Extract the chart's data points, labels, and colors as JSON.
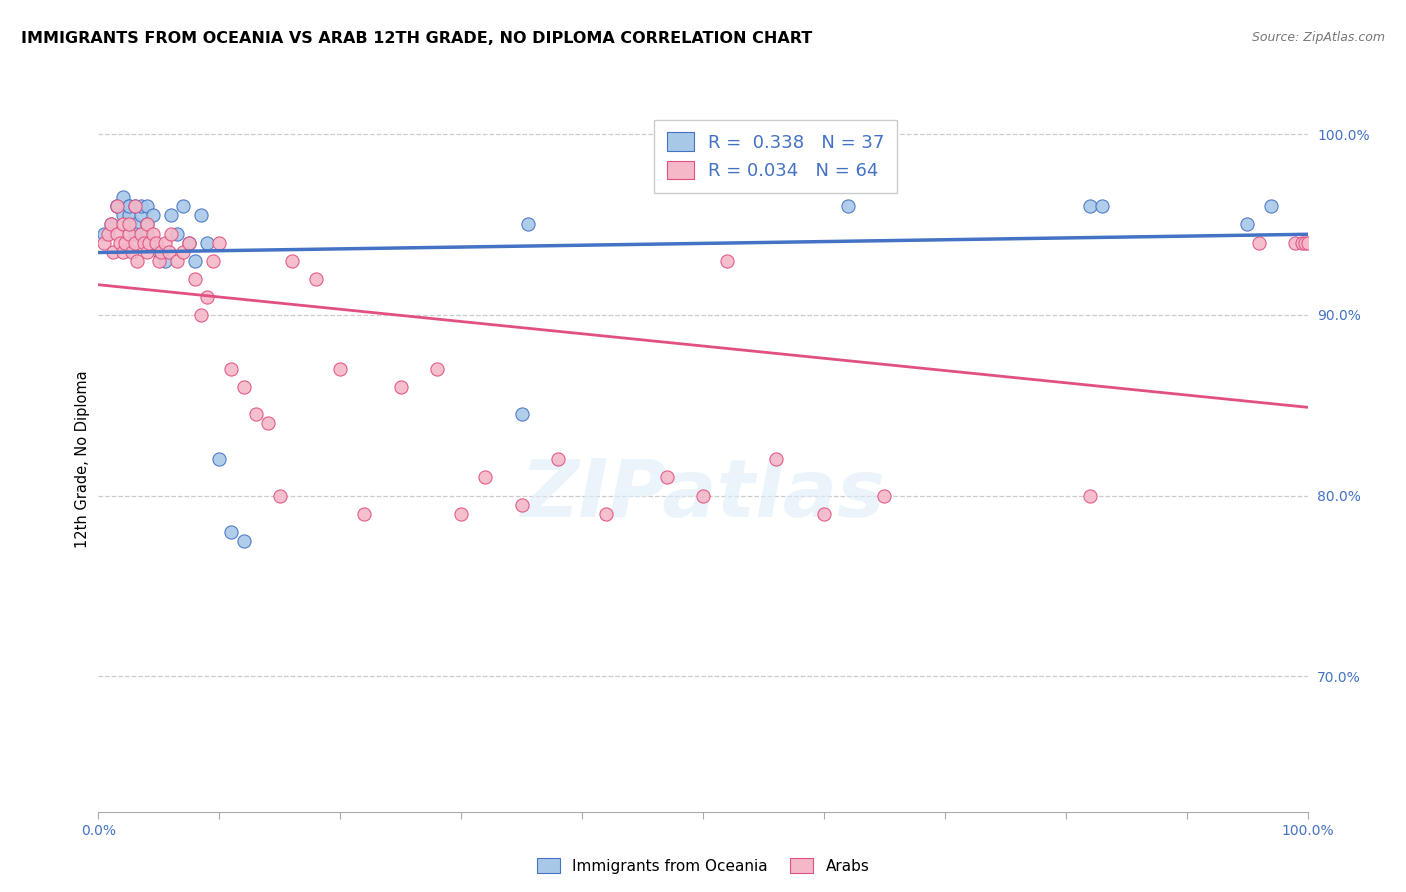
{
  "title": "IMMIGRANTS FROM OCEANIA VS ARAB 12TH GRADE, NO DIPLOMA CORRELATION CHART",
  "source": "Source: ZipAtlas.com",
  "ylabel": "12th Grade, No Diploma",
  "legend_label1": "Immigrants from Oceania",
  "legend_label2": "Arabs",
  "r1": 0.338,
  "n1": 37,
  "r2": 0.034,
  "n2": 64,
  "color_oceania": "#a8c8e8",
  "color_arab": "#f4b8c8",
  "trendline_oceania": "#4472c4",
  "trendline_arab": "#e05080",
  "right_yticks": [
    "100.0%",
    "90.0%",
    "80.0%",
    "70.0%"
  ],
  "right_ytick_vals": [
    1.0,
    0.9,
    0.8,
    0.7
  ],
  "ylim_min": 0.625,
  "ylim_max": 1.015,
  "oceania_x": [
    0.005,
    0.01,
    0.015,
    0.015,
    0.02,
    0.02,
    0.025,
    0.025,
    0.025,
    0.03,
    0.03,
    0.03,
    0.035,
    0.035,
    0.04,
    0.04,
    0.04,
    0.045,
    0.05,
    0.055,
    0.06,
    0.065,
    0.07,
    0.075,
    0.08,
    0.085,
    0.09,
    0.1,
    0.11,
    0.12,
    0.35,
    0.355,
    0.62,
    0.82,
    0.83,
    0.95,
    0.97
  ],
  "oceania_y": [
    0.945,
    0.95,
    0.96,
    0.96,
    0.955,
    0.965,
    0.96,
    0.955,
    0.96,
    0.95,
    0.945,
    0.96,
    0.955,
    0.96,
    0.945,
    0.95,
    0.96,
    0.955,
    0.935,
    0.93,
    0.955,
    0.945,
    0.96,
    0.94,
    0.93,
    0.955,
    0.94,
    0.82,
    0.78,
    0.775,
    0.845,
    0.95,
    0.96,
    0.96,
    0.96,
    0.95,
    0.96
  ],
  "arab_x": [
    0.005,
    0.008,
    0.01,
    0.012,
    0.015,
    0.015,
    0.018,
    0.02,
    0.02,
    0.022,
    0.025,
    0.025,
    0.028,
    0.03,
    0.03,
    0.032,
    0.035,
    0.038,
    0.04,
    0.04,
    0.042,
    0.045,
    0.048,
    0.05,
    0.052,
    0.055,
    0.058,
    0.06,
    0.065,
    0.07,
    0.075,
    0.08,
    0.085,
    0.09,
    0.095,
    0.1,
    0.11,
    0.12,
    0.13,
    0.14,
    0.15,
    0.16,
    0.18,
    0.2,
    0.22,
    0.25,
    0.28,
    0.3,
    0.32,
    0.35,
    0.38,
    0.42,
    0.47,
    0.5,
    0.52,
    0.56,
    0.6,
    0.65,
    0.82,
    0.96,
    0.99,
    0.995,
    0.998,
    1.0
  ],
  "arab_y": [
    0.94,
    0.945,
    0.95,
    0.935,
    0.945,
    0.96,
    0.94,
    0.935,
    0.95,
    0.94,
    0.945,
    0.95,
    0.935,
    0.94,
    0.96,
    0.93,
    0.945,
    0.94,
    0.95,
    0.935,
    0.94,
    0.945,
    0.94,
    0.93,
    0.935,
    0.94,
    0.935,
    0.945,
    0.93,
    0.935,
    0.94,
    0.92,
    0.9,
    0.91,
    0.93,
    0.94,
    0.87,
    0.86,
    0.845,
    0.84,
    0.8,
    0.93,
    0.92,
    0.87,
    0.79,
    0.86,
    0.87,
    0.79,
    0.81,
    0.795,
    0.82,
    0.79,
    0.81,
    0.8,
    0.93,
    0.82,
    0.79,
    0.8,
    0.8,
    0.94,
    0.94,
    0.94,
    0.94,
    0.94
  ]
}
